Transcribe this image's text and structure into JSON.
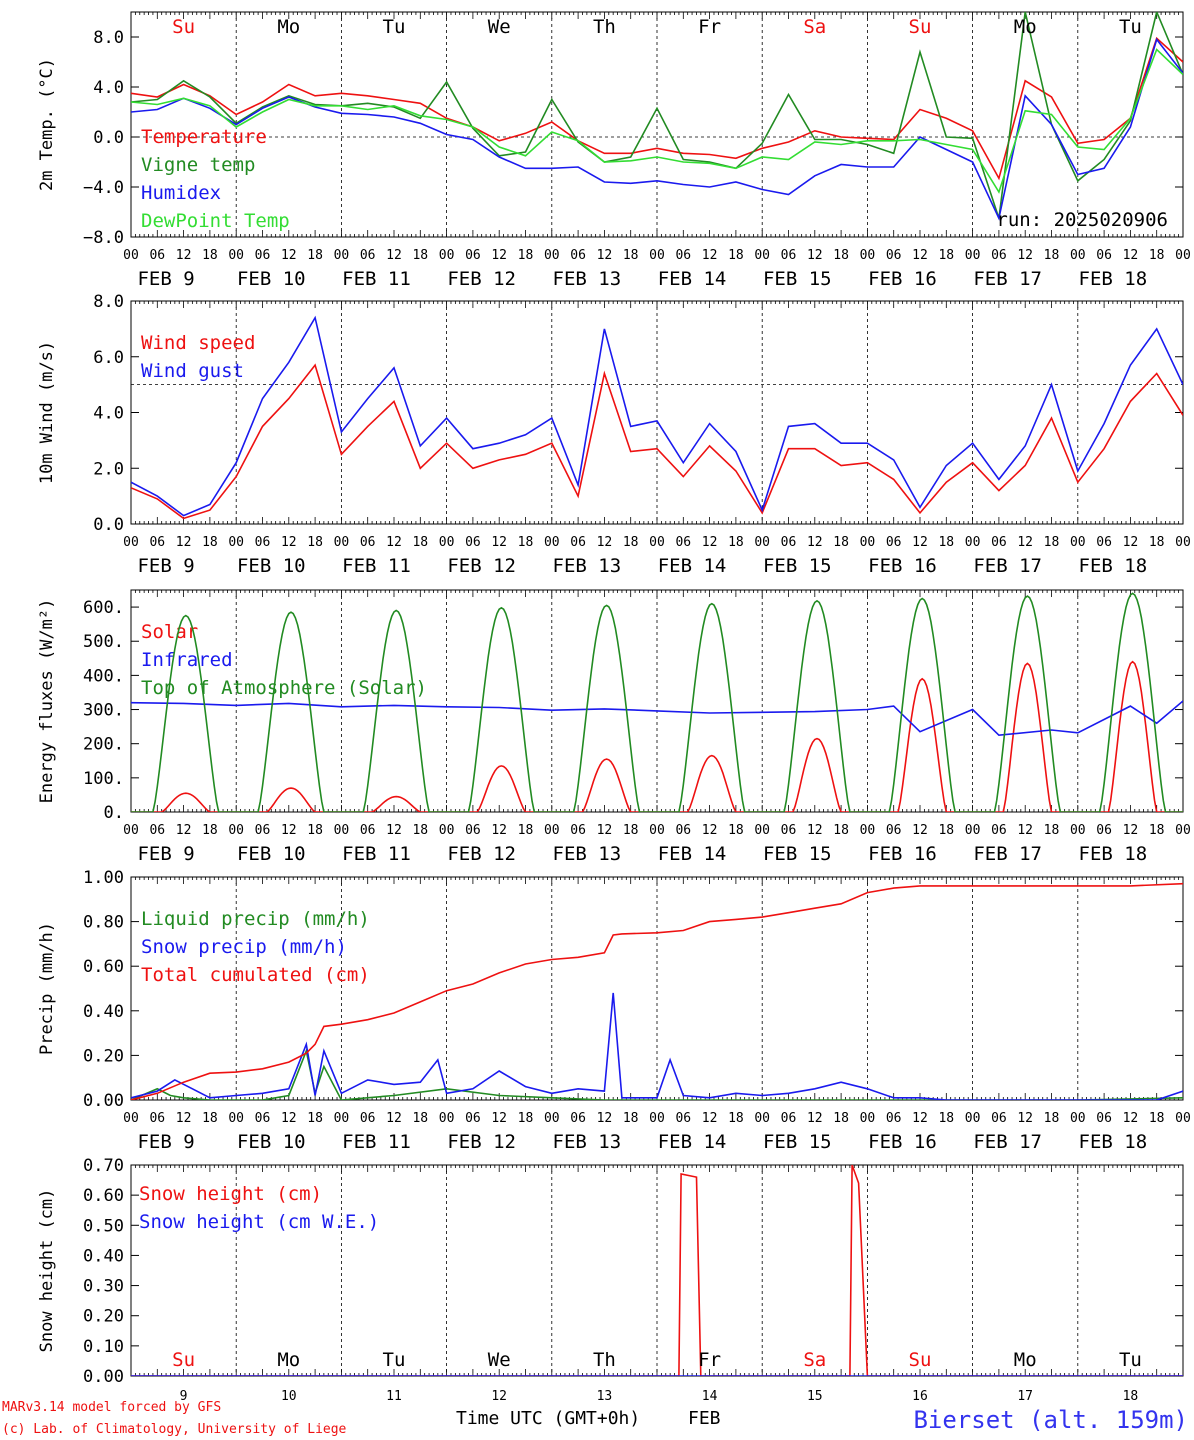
{
  "colors": {
    "red": "#ee1111",
    "green": "#228b22",
    "blue": "#1a1aee",
    "lightgreen": "#33dd33",
    "black": "#000000",
    "footer_blue": "#3333ee"
  },
  "days": {
    "top_labels": [
      "Su",
      "Mo",
      "Tu",
      "We",
      "Th",
      "Fr",
      "Sa",
      "Su",
      "Mo",
      "Tu"
    ],
    "bottom_labels": [
      "Su",
      "Mo",
      "Tu",
      "We",
      "Th",
      "Fr",
      "Sa",
      "Su",
      "Mo",
      "Tu"
    ],
    "red_days": [
      0,
      6,
      7
    ],
    "date_labels": [
      "FEB  9",
      "FEB 10",
      "FEB 11",
      "FEB 12",
      "FEB 13",
      "FEB 14",
      "FEB 15",
      "FEB 16",
      "FEB 17",
      "FEB 18"
    ],
    "day_numbers": [
      "9",
      "10",
      "11",
      "12",
      "13",
      "14",
      "15",
      "16",
      "17",
      "18"
    ],
    "hour_labels": [
      "00",
      "06",
      "12",
      "18"
    ]
  },
  "footer": {
    "model": "MARv3.14 model forced by GFS",
    "lab": "(c) Lab. of Climatology, University of Liege",
    "xlabel": "Time UTC (GMT+0h)",
    "month": "FEB",
    "station": "Bierset (alt. 159m)"
  },
  "chart_data": [
    {
      "type": "line",
      "ylabel": "2m Temp. (°C)",
      "ylim": [
        -8,
        10
      ],
      "yticks": [
        -8,
        -4,
        0,
        4,
        8
      ],
      "yticklabels": [
        "−8.0",
        "−4.0",
        "0.0",
        "4.0",
        "8.0"
      ],
      "ref_line": 0,
      "annotation": "run: 2025020906",
      "x_hours": [
        0,
        6,
        12,
        18,
        24,
        30,
        36,
        42,
        48,
        54,
        60,
        66,
        72,
        78,
        84,
        90,
        96,
        102,
        108,
        114,
        120,
        126,
        132,
        138,
        144,
        150,
        156,
        162,
        168,
        174,
        180,
        186,
        192,
        198,
        204,
        210,
        216,
        222,
        228,
        234,
        240
      ],
      "series": [
        {
          "name": "Temperature",
          "color": "red",
          "values": [
            3.5,
            3.2,
            4.2,
            3.3,
            1.8,
            2.8,
            4.2,
            3.3,
            3.5,
            3.3,
            3.0,
            2.7,
            1.5,
            0.8,
            -0.3,
            0.3,
            1.2,
            -0.3,
            -1.3,
            -1.3,
            -0.9,
            -1.3,
            -1.4,
            -1.7,
            -0.9,
            -0.4,
            0.5,
            0.0,
            -0.1,
            -0.2,
            2.2,
            1.5,
            0.5,
            -3.3,
            4.5,
            3.2,
            -0.5,
            -0.2,
            1.5,
            7.9,
            6.0
          ]
        },
        {
          "name": "Vigne temp",
          "color": "green",
          "values": [
            2.8,
            3.0,
            4.5,
            3.2,
            1.1,
            2.4,
            3.3,
            2.6,
            2.5,
            2.7,
            2.4,
            1.5,
            4.4,
            0.7,
            -1.5,
            -1.2,
            3.0,
            -0.4,
            -2.0,
            -1.6,
            2.3,
            -1.8,
            -2.0,
            -2.5,
            -0.5,
            3.4,
            -0.2,
            -0.2,
            -0.6,
            -1.3,
            6.8,
            0.0,
            -0.1,
            -6.5,
            10.0,
            1.0,
            -3.5,
            -1.8,
            1.3,
            10.0,
            5.0
          ]
        },
        {
          "name": "Humidex",
          "color": "blue",
          "values": [
            2.0,
            2.2,
            3.1,
            2.3,
            1.0,
            2.3,
            3.2,
            2.4,
            1.9,
            1.8,
            1.6,
            1.1,
            0.2,
            -0.2,
            -1.6,
            -2.5,
            -2.5,
            -2.4,
            -3.6,
            -3.7,
            -3.5,
            -3.8,
            -4.0,
            -3.6,
            -4.2,
            -4.6,
            -3.1,
            -2.2,
            -2.4,
            -2.4,
            0.0,
            -1.0,
            -2.0,
            -6.5,
            3.3,
            1.0,
            -3.0,
            -2.5,
            0.8,
            7.8,
            5.1
          ]
        },
        {
          "name": "DewPoint Temp",
          "color": "lightgreen",
          "values": [
            2.8,
            2.6,
            3.1,
            2.5,
            0.8,
            2.0,
            3.0,
            2.5,
            2.5,
            2.2,
            2.5,
            1.7,
            1.4,
            0.8,
            -0.8,
            -1.5,
            0.4,
            -0.3,
            -2.0,
            -1.9,
            -1.6,
            -2.0,
            -2.1,
            -2.5,
            -1.6,
            -1.8,
            -0.4,
            -0.6,
            -0.3,
            -0.3,
            -0.2,
            -0.6,
            -1.0,
            -4.4,
            2.1,
            1.8,
            -0.8,
            -1.0,
            1.5,
            7.0,
            5.0
          ]
        }
      ]
    },
    {
      "type": "line",
      "ylabel": "10m Wind (m/s)",
      "ylim": [
        0,
        8
      ],
      "yticks": [
        0,
        2,
        4,
        6,
        8
      ],
      "yticklabels": [
        "0.0",
        "2.0",
        "4.0",
        "6.0",
        "8.0"
      ],
      "ref_line": 5,
      "x_hours": [
        0,
        6,
        12,
        18,
        24,
        30,
        36,
        42,
        48,
        54,
        60,
        66,
        72,
        78,
        84,
        90,
        96,
        102,
        108,
        114,
        120,
        126,
        132,
        138,
        144,
        150,
        156,
        162,
        168,
        174,
        180,
        186,
        192,
        198,
        204,
        210,
        216,
        222,
        228,
        234,
        240
      ],
      "series": [
        {
          "name": "Wind speed",
          "color": "red",
          "values": [
            1.3,
            0.9,
            0.2,
            0.5,
            1.7,
            3.5,
            4.5,
            5.7,
            2.5,
            3.5,
            4.4,
            2.0,
            2.9,
            2.0,
            2.3,
            2.5,
            2.9,
            1.0,
            5.4,
            2.6,
            2.7,
            1.7,
            2.8,
            1.9,
            0.4,
            2.7,
            2.7,
            2.1,
            2.2,
            1.6,
            0.4,
            1.5,
            2.2,
            1.2,
            2.1,
            3.8,
            1.5,
            2.7,
            4.4,
            5.4,
            3.9
          ]
        },
        {
          "name": "Wind gust",
          "color": "blue",
          "values": [
            1.5,
            1.0,
            0.3,
            0.7,
            2.2,
            4.5,
            5.8,
            7.4,
            3.3,
            4.5,
            5.6,
            2.8,
            3.8,
            2.7,
            2.9,
            3.2,
            3.8,
            1.4,
            7.0,
            3.5,
            3.7,
            2.2,
            3.6,
            2.6,
            0.5,
            3.5,
            3.6,
            2.9,
            2.9,
            2.3,
            0.6,
            2.1,
            2.9,
            1.6,
            2.8,
            5.0,
            1.9,
            3.6,
            5.7,
            7.0,
            5.0
          ]
        }
      ]
    },
    {
      "type": "line",
      "ylabel": "Energy fluxes (W/m²)",
      "ylim": [
        0,
        650
      ],
      "yticks": [
        0,
        100,
        200,
        300,
        400,
        500,
        600
      ],
      "yticklabels": [
        "0.",
        "100.",
        "200.",
        "300.",
        "400.",
        "500.",
        "600."
      ],
      "series": [
        {
          "name": "Solar",
          "color": "red",
          "day_peaks": [
            55,
            70,
            45,
            135,
            155,
            165,
            215,
            390,
            435,
            440
          ]
        },
        {
          "name": "Infrared",
          "color": "blue",
          "x_hours": [
            0,
            12,
            24,
            36,
            48,
            60,
            72,
            84,
            96,
            108,
            120,
            132,
            144,
            156,
            168,
            174,
            180,
            192,
            198,
            210,
            216,
            228,
            234,
            240
          ],
          "values": [
            320,
            318,
            312,
            318,
            308,
            312,
            308,
            306,
            298,
            302,
            296,
            290,
            292,
            294,
            300,
            310,
            235,
            300,
            225,
            240,
            232,
            310,
            260,
            325
          ]
        },
        {
          "name": "Top of Atmosphere (Solar)",
          "color": "green",
          "day_peaks": [
            575,
            585,
            590,
            598,
            605,
            610,
            618,
            625,
            632,
            640
          ]
        }
      ]
    },
    {
      "type": "line",
      "ylabel": "Precip (mm/h)",
      "ylim": [
        0,
        1.0
      ],
      "yticks": [
        0,
        0.2,
        0.4,
        0.6,
        0.8,
        1.0
      ],
      "yticklabels": [
        "0.00",
        "0.20",
        "0.40",
        "0.60",
        "0.80",
        "1.00"
      ],
      "series": [
        {
          "name": "Liquid precip (mm/h)",
          "color": "green",
          "x_hours": [
            0,
            6,
            9,
            12,
            18,
            24,
            30,
            36,
            40,
            42,
            44,
            48,
            60,
            72,
            84,
            96,
            108,
            120,
            144,
            168,
            192,
            216,
            240
          ],
          "values": [
            0.0,
            0.05,
            0.02,
            0.01,
            0.0,
            0.0,
            0.0,
            0.02,
            0.22,
            0.03,
            0.15,
            0.0,
            0.02,
            0.05,
            0.02,
            0.01,
            0.0,
            0.0,
            0.0,
            0.0,
            0.0,
            0.0,
            0.01
          ]
        },
        {
          "name": "Snow precip (mm/h)",
          "color": "blue",
          "x_hours": [
            0,
            6,
            10,
            14,
            18,
            24,
            30,
            36,
            40,
            42,
            44,
            48,
            54,
            60,
            66,
            70,
            72,
            78,
            84,
            90,
            96,
            102,
            108,
            110,
            112,
            114,
            120,
            123,
            126,
            132,
            138,
            144,
            150,
            156,
            162,
            168,
            174,
            180,
            186,
            192,
            198,
            204,
            210,
            216,
            222,
            228,
            234,
            240
          ],
          "values": [
            0.01,
            0.04,
            0.09,
            0.05,
            0.01,
            0.02,
            0.03,
            0.05,
            0.25,
            0.02,
            0.22,
            0.03,
            0.09,
            0.07,
            0.08,
            0.18,
            0.03,
            0.05,
            0.13,
            0.06,
            0.03,
            0.05,
            0.04,
            0.48,
            0.01,
            0.01,
            0.01,
            0.18,
            0.02,
            0.01,
            0.03,
            0.02,
            0.03,
            0.05,
            0.08,
            0.05,
            0.01,
            0.01,
            0.0,
            0.0,
            0.0,
            0.0,
            0.0,
            0.0,
            0.0,
            0.0,
            0.0,
            0.04
          ]
        },
        {
          "name": "Total cumulated (cm)",
          "color": "red",
          "x_hours": [
            0,
            6,
            12,
            18,
            24,
            30,
            36,
            40,
            42,
            44,
            48,
            54,
            60,
            66,
            72,
            78,
            84,
            90,
            96,
            102,
            108,
            110,
            112,
            120,
            126,
            132,
            138,
            144,
            150,
            156,
            162,
            168,
            174,
            180,
            192,
            204,
            216,
            228,
            240
          ],
          "values": [
            0.0,
            0.03,
            0.08,
            0.12,
            0.125,
            0.14,
            0.17,
            0.21,
            0.25,
            0.33,
            0.34,
            0.36,
            0.39,
            0.44,
            0.49,
            0.52,
            0.57,
            0.61,
            0.63,
            0.64,
            0.66,
            0.74,
            0.745,
            0.75,
            0.76,
            0.8,
            0.81,
            0.82,
            0.84,
            0.86,
            0.88,
            0.93,
            0.95,
            0.96,
            0.96,
            0.96,
            0.96,
            0.96,
            0.97
          ]
        }
      ]
    },
    {
      "type": "line",
      "ylabel": "Snow height (cm)",
      "ylim": [
        0,
        0.7
      ],
      "yticks": [
        0,
        0.1,
        0.2,
        0.3,
        0.4,
        0.5,
        0.6,
        0.7
      ],
      "yticklabels": [
        "0.00",
        "0.10",
        "0.20",
        "0.30",
        "0.40",
        "0.50",
        "0.60",
        "0.70"
      ],
      "series": [
        {
          "name": "Snow height (cm)",
          "color": "red",
          "x_hours": [
            0,
            125,
            125.5,
            129,
            130,
            164,
            164.5,
            166,
            168,
            240
          ],
          "values": [
            0,
            0,
            0.67,
            0.66,
            0,
            0,
            0.7,
            0.64,
            0,
            0
          ]
        },
        {
          "name": "Snow height (cm W.E.)",
          "color": "blue",
          "x_hours": [
            0,
            240
          ],
          "values": [
            0,
            0
          ]
        }
      ]
    }
  ]
}
